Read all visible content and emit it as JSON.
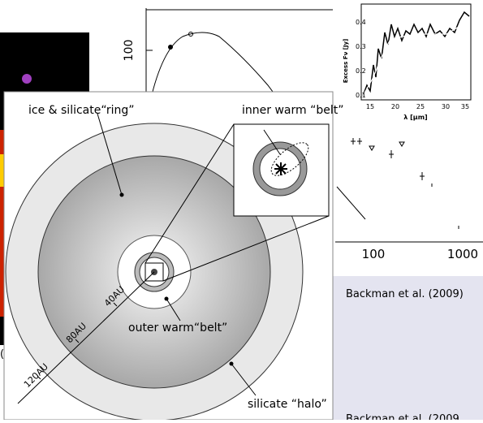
{
  "sed_plot": {
    "y_tick": 100
  },
  "spectrum_inset": {
    "y_label": "Excess Fν [Jy]",
    "x_label": "λ [μm]",
    "y_ticks": [
      0.1,
      0.2,
      0.3,
      0.4
    ],
    "x_ticks": [
      15,
      20,
      25,
      30,
      35
    ]
  },
  "photometry_plot": {
    "x_ticks": [
      100,
      1000
    ]
  },
  "citations": [
    "Backman et al. (2009)",
    "Backman et al. (2009"
  ],
  "left_fragment": "(",
  "diagram": {
    "ring_label": "ice & silicate“ring”",
    "inner_belt_label": "inner warm “belt”",
    "outer_belt_label": "outer warm“belt”",
    "halo_label": "silicate “halo”",
    "distances": [
      "40AU",
      "80AU",
      "120AU"
    ]
  }
}
